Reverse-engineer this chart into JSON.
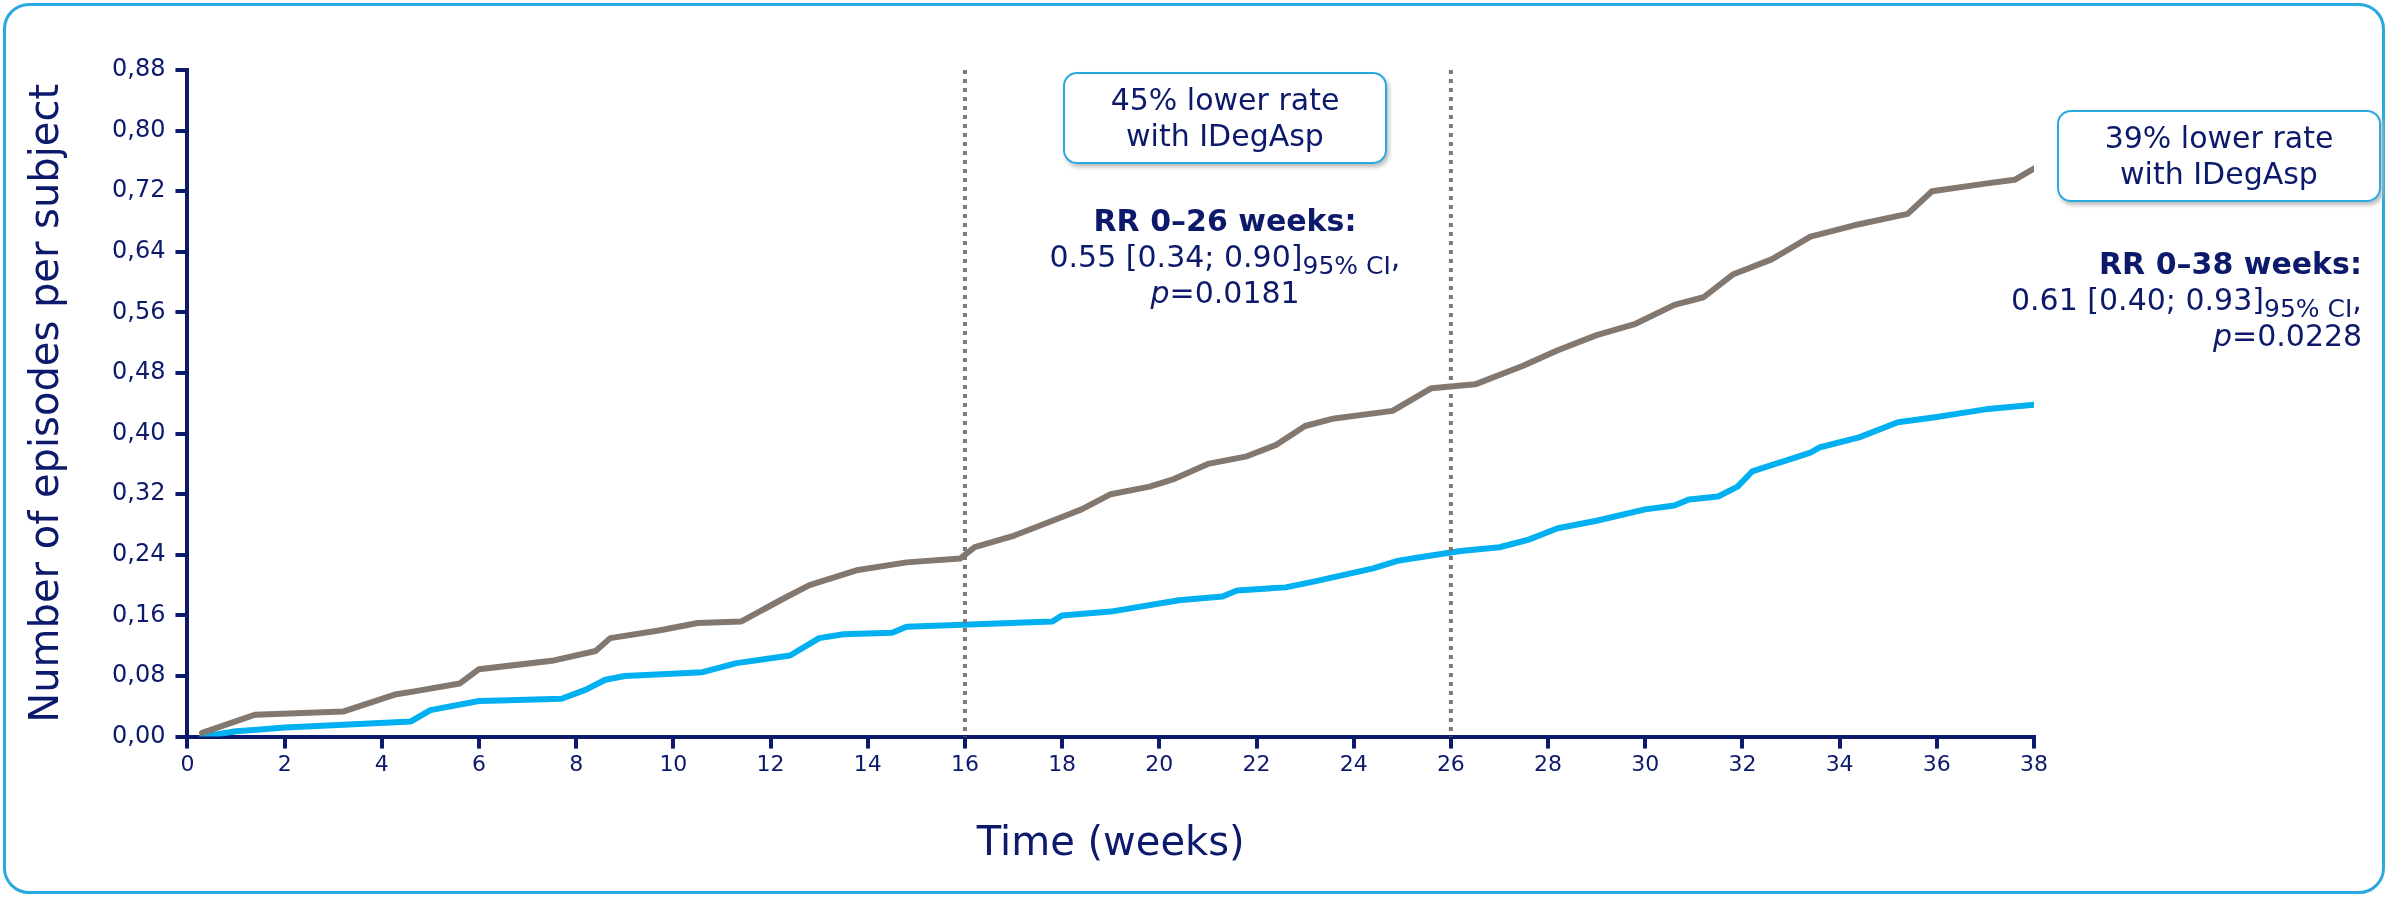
{
  "chart_data": {
    "type": "line",
    "xlabel": "Time (weeks)",
    "ylabel": "Number of episodes per subject",
    "xlim": [
      0,
      38
    ],
    "xticks": [
      0,
      2,
      4,
      6,
      8,
      10,
      12,
      14,
      16,
      18,
      20,
      22,
      24,
      26,
      28,
      30,
      32,
      34,
      36,
      38
    ],
    "ylim": [
      0,
      0.88
    ],
    "yticks": [
      {
        "value": 0,
        "label": "0,00"
      },
      {
        "value": 0.08,
        "label": "0,08"
      },
      {
        "value": 0.16,
        "label": "0,16"
      },
      {
        "value": 0.24,
        "label": "0,24"
      },
      {
        "value": 0.32,
        "label": "0,32"
      },
      {
        "value": 0.4,
        "label": "0,40"
      },
      {
        "value": 0.48,
        "label": "0,48"
      },
      {
        "value": 0.56,
        "label": "0,56"
      },
      {
        "value": 0.64,
        "label": "0,64"
      },
      {
        "value": 0.72,
        "label": "0,72"
      },
      {
        "value": 0.8,
        "label": "0,80"
      },
      {
        "value": 0.88,
        "label": "0,88"
      }
    ],
    "grid": false,
    "legend": false,
    "marker": "none",
    "line_style": "solid",
    "series": [
      {
        "color": "#837870",
        "x": [
          0.3,
          1.4,
          3.2,
          4.3,
          4.7,
          5.6,
          6.0,
          7.5,
          8.4,
          8.7,
          9.7,
          10.5,
          11.4,
          12.2,
          12.8,
          13.8,
          14.8,
          15.9,
          16.2,
          17.0,
          18.0,
          18.4,
          19.0,
          19.8,
          20.3,
          21.0,
          21.8,
          22.4,
          23.0,
          23.6,
          24.8,
          25.6,
          26.5,
          27.5,
          28.2,
          29.0,
          29.8,
          30.6,
          31.2,
          31.8,
          32.6,
          33.4,
          34.3,
          35.4,
          35.9,
          37.0,
          37.6,
          38.0
        ],
        "values": [
          0.005,
          0.029,
          0.033,
          0.056,
          0.06,
          0.07,
          0.089,
          0.1,
          0.113,
          0.13,
          0.14,
          0.15,
          0.152,
          0.18,
          0.2,
          0.22,
          0.23,
          0.235,
          0.25,
          0.265,
          0.29,
          0.3,
          0.32,
          0.33,
          0.34,
          0.36,
          0.37,
          0.385,
          0.41,
          0.42,
          0.43,
          0.46,
          0.465,
          0.49,
          0.51,
          0.53,
          0.545,
          0.57,
          0.58,
          0.61,
          0.63,
          0.66,
          0.675,
          0.69,
          0.72,
          0.73,
          0.735,
          0.75
        ]
      },
      {
        "color": "#00b0f0",
        "x": [
          0.3,
          1.0,
          2.0,
          3.0,
          4.6,
          5.0,
          6.0,
          7.7,
          8.2,
          8.6,
          9.0,
          10.6,
          11.3,
          12.4,
          13.0,
          13.5,
          14.5,
          14.8,
          17.8,
          18.0,
          19.0,
          20.4,
          21.3,
          21.6,
          22.6,
          23.2,
          24.4,
          24.9,
          25.5,
          26.2,
          27.0,
          27.6,
          28.2,
          29.0,
          30.0,
          30.6,
          30.9,
          31.5,
          31.9,
          32.2,
          33.4,
          33.6,
          34.4,
          35.2,
          36.0,
          36.6,
          37.0,
          38.0
        ],
        "values": [
          0.0,
          0.007,
          0.012,
          0.015,
          0.02,
          0.035,
          0.047,
          0.05,
          0.062,
          0.075,
          0.08,
          0.085,
          0.097,
          0.107,
          0.13,
          0.135,
          0.137,
          0.145,
          0.152,
          0.16,
          0.165,
          0.18,
          0.185,
          0.193,
          0.197,
          0.205,
          0.222,
          0.232,
          0.238,
          0.245,
          0.25,
          0.26,
          0.275,
          0.285,
          0.3,
          0.305,
          0.313,
          0.317,
          0.33,
          0.35,
          0.375,
          0.382,
          0.395,
          0.415,
          0.422,
          0.428,
          0.432,
          0.438
        ]
      }
    ],
    "ref_lines": [
      {
        "axis": "x",
        "value": 16,
        "color": "#837870",
        "line_style": "dotted"
      },
      {
        "axis": "x",
        "value": 26,
        "color": "#837870",
        "line_style": "dotted"
      }
    ],
    "annotations": [
      "45% lower rate with IDegAsp",
      "RR 0–26 weeks:",
      "0.55 [0.34; 0.90]$_{95% CI}$,",
      "p=0.0181",
      "39% lower rate with IDegAsp",
      "RR 0–38 weeks:",
      "0.61 [0.40; 0.93]$_{95% CI}$,",
      "p=0.0228"
    ]
  }
}
